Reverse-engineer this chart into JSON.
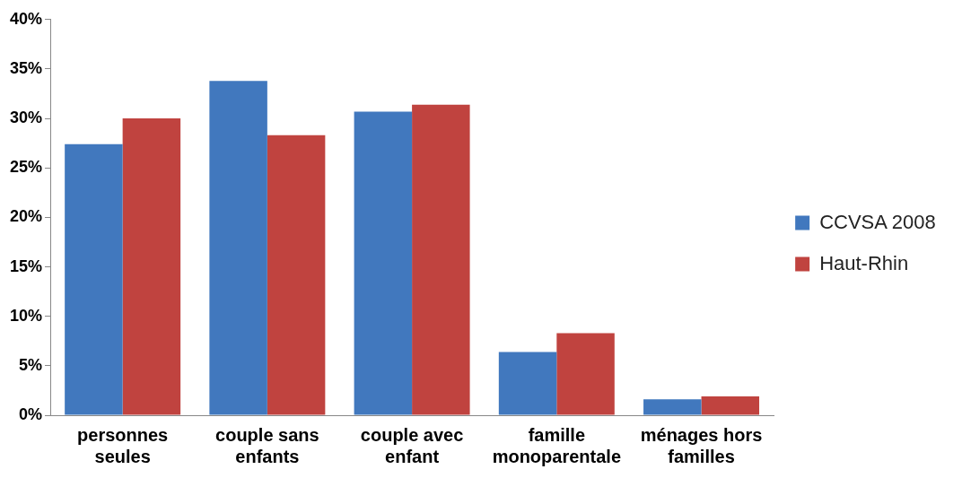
{
  "chart_data": {
    "type": "bar",
    "categories": [
      "personnes seules",
      "couple sans enfants",
      "couple avec enfant",
      "famille monoparentale",
      "ménages hors familles"
    ],
    "series": [
      {
        "name": "CCVSA 2008",
        "color": "#4178be",
        "values": [
          27.4,
          33.8,
          30.7,
          6.4,
          1.6
        ]
      },
      {
        "name": "Haut-Rhin",
        "color": "#c0433f",
        "values": [
          30.0,
          28.3,
          31.4,
          8.3,
          1.9
        ]
      }
    ],
    "ylim": [
      0,
      40
    ],
    "yticks": [
      {
        "value": 0,
        "label": "0%"
      },
      {
        "value": 5,
        "label": "5%"
      },
      {
        "value": 10,
        "label": "10%"
      },
      {
        "value": 15,
        "label": "15%"
      },
      {
        "value": 20,
        "label": "20%"
      },
      {
        "value": 25,
        "label": "25%"
      },
      {
        "value": 30,
        "label": "30%"
      },
      {
        "value": 35,
        "label": "35%"
      },
      {
        "value": 40,
        "label": "40%"
      }
    ],
    "grid": false,
    "legend": "right"
  }
}
